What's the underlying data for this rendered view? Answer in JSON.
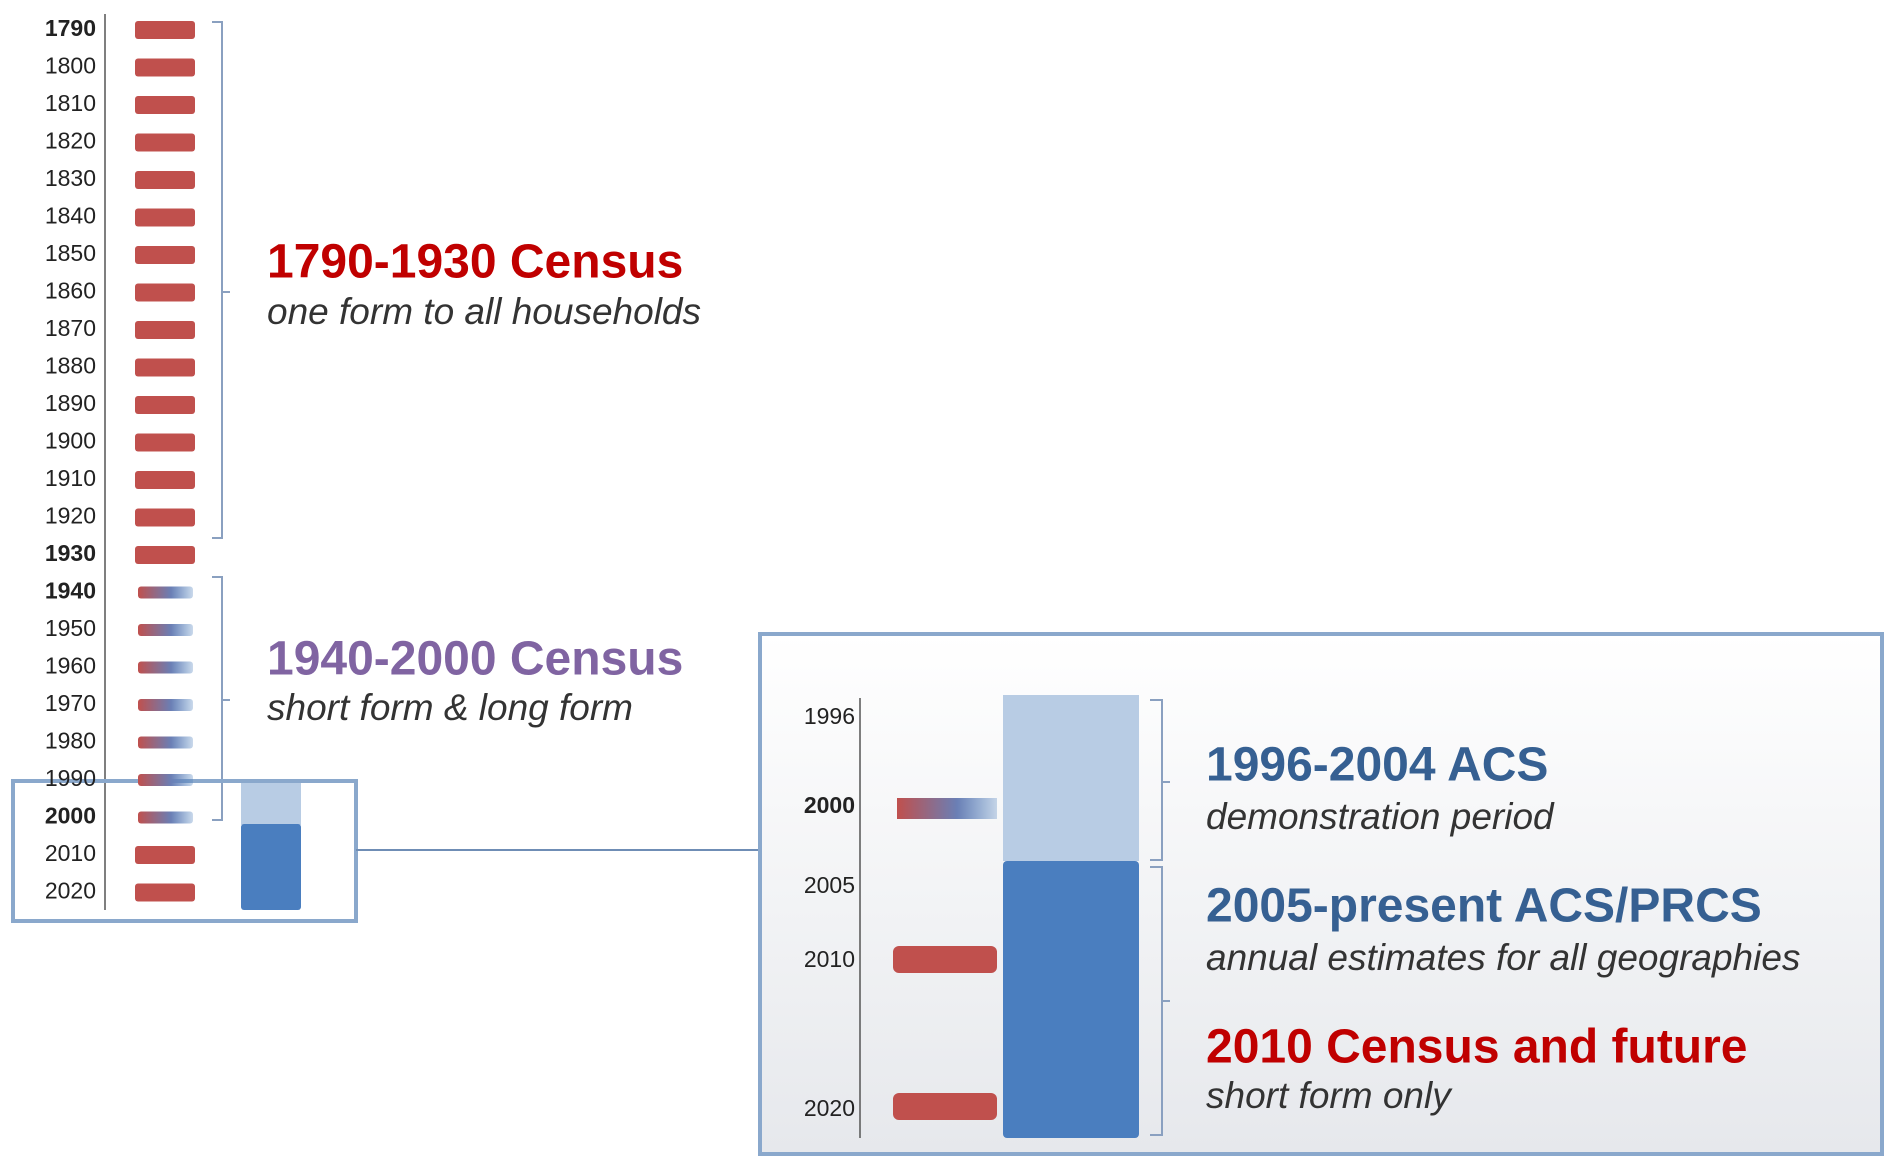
{
  "timeline": {
    "years": [
      "1790",
      "1800",
      "1810",
      "1820",
      "1830",
      "1840",
      "1850",
      "1860",
      "1870",
      "1880",
      "1890",
      "1900",
      "1910",
      "1920",
      "1930",
      "1940",
      "1950",
      "1960",
      "1970",
      "1980",
      "1990",
      "2000",
      "2010",
      "2020"
    ]
  },
  "groups": [
    {
      "title": "1790-1930 Census",
      "subtitle": "one form to all households"
    },
    {
      "title": "1940-2000 Census",
      "subtitle": "short form & long form"
    }
  ],
  "inset": {
    "years": [
      "1996",
      "2000",
      "2005",
      "2010",
      "2020"
    ],
    "groups": [
      {
        "title": "1996-2004 ACS",
        "subtitle": "demonstration period"
      },
      {
        "title": "2005-present ACS/PRCS",
        "subtitle": "annual estimates for all geographies"
      },
      {
        "title": "2010 Census and future",
        "subtitle": "short form only"
      }
    ]
  }
}
